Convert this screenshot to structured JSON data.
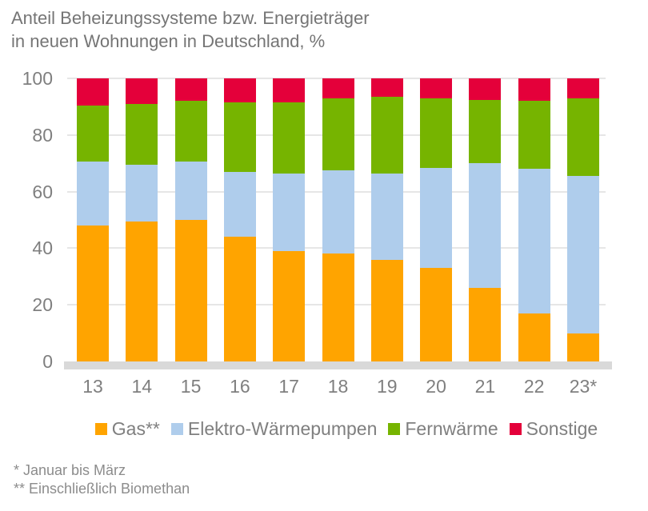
{
  "title": {
    "line1": "Anteil Beheizungssysteme bzw. Energieträger",
    "line2": "in neuen Wohnungen in Deutschland, %"
  },
  "footnotes": [
    "* Januar bis März",
    "** Einschließlich Biomethan"
  ],
  "colors": {
    "gas": "#FFA400",
    "waermepumpen": "#AFCDEC",
    "fernwaerme": "#76B400",
    "sonstige": "#E4003A",
    "title_text": "#757575",
    "axis_text": "#7F7F7F",
    "gridline": "#E6E6E6",
    "baseline": "#D9D9D9"
  },
  "chart_data": {
    "type": "bar",
    "stacked": true,
    "title": "Anteil Beheizungssysteme bzw. Energieträger in neuen Wohnungen in Deutschland, %",
    "xlabel": "",
    "ylabel": "",
    "ylim": [
      0,
      100
    ],
    "y_ticks": [
      0,
      20,
      40,
      60,
      80,
      100
    ],
    "grid": true,
    "legend_position": "bottom",
    "categories": [
      "13",
      "14",
      "15",
      "16",
      "17",
      "18",
      "19",
      "20",
      "21",
      "22",
      "23*"
    ],
    "series": [
      {
        "name": "Gas**",
        "slug": "gas",
        "color": "#FFA400",
        "values": [
          48,
          49.5,
          50,
          44,
          39,
          38,
          36,
          33,
          26,
          17,
          10
        ]
      },
      {
        "name": "Elektro-Wärmepumpen",
        "slug": "waermepumpen",
        "color": "#AFCDEC",
        "values": [
          22.5,
          20,
          20.5,
          23,
          27.5,
          29.5,
          30.5,
          35.5,
          44,
          51,
          55.5
        ]
      },
      {
        "name": "Fernwärme",
        "slug": "fernwaerme",
        "color": "#76B400",
        "values": [
          20,
          21.5,
          21.5,
          24.5,
          25,
          25.5,
          27,
          24.5,
          22.5,
          24,
          27.5
        ]
      },
      {
        "name": "Sonstige",
        "slug": "sonstige",
        "color": "#E4003A",
        "values": [
          9.5,
          9,
          8,
          8.5,
          8.5,
          7,
          6.5,
          7,
          7.5,
          8,
          7
        ]
      }
    ]
  }
}
